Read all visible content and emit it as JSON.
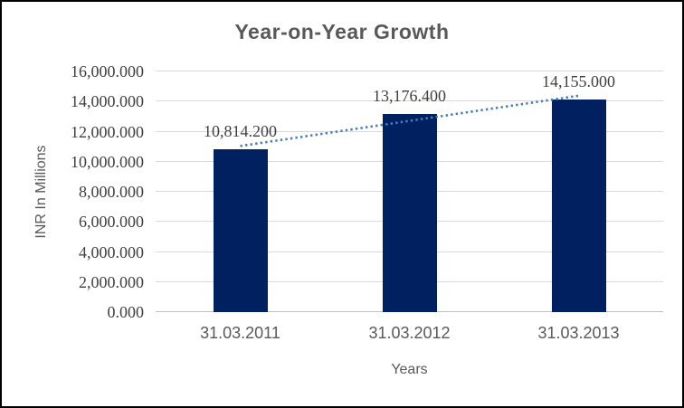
{
  "chart": {
    "title": "Year-on-Year Growth",
    "y_axis_title": "INR In Millions",
    "x_axis_title": "Years"
  },
  "chart_data": {
    "type": "bar",
    "title": "Year-on-Year Growth",
    "xlabel": "Years",
    "ylabel": "INR In Millions",
    "categories": [
      "31.03.2011",
      "31.03.2012",
      "31.03.2013"
    ],
    "values": [
      10814.2,
      13176.4,
      14155.0
    ],
    "data_labels": [
      "10,814.200",
      "13,176.400",
      "14,155.000"
    ],
    "ylim": [
      0,
      16000
    ],
    "ytick_step": 2000,
    "ytick_labels": [
      "0.000",
      "2,000.000",
      "4,000.000",
      "6,000.000",
      "8,000.000",
      "10,000.000",
      "12,000.000",
      "14,000.000",
      "16,000.000"
    ],
    "grid": true,
    "legend": false,
    "trendline": {
      "type": "linear",
      "style": "dotted"
    },
    "colors": {
      "bar": "#002060",
      "gridline": "#d9d9d9",
      "axis_line": "#bfbfbf",
      "heading_text": "#595959",
      "number_text": "#3f3f3f",
      "trendline": "#4a7ebb"
    }
  }
}
